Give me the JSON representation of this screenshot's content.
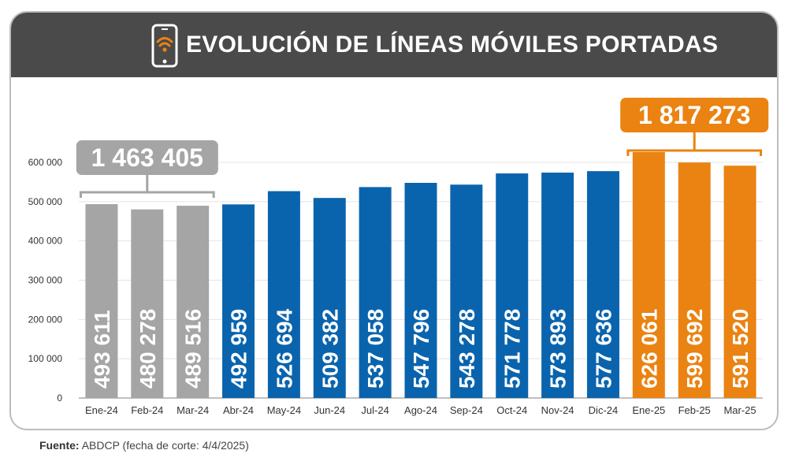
{
  "header": {
    "title": "EVOLUCIÓN DE LÍNEAS MÓVILES PORTADAS",
    "icon": "smartphone-wifi-icon"
  },
  "footer": {
    "source_label": "Fuente:",
    "source_text": "ABDCP (fecha de corte: 4/4/2025)"
  },
  "colors": {
    "header_bg": "#4a4a4a",
    "gray_bar": "#a5a5a5",
    "blue_bar": "#0a64ad",
    "orange_bar": "#ea8312",
    "accent_orange": "#ea8312"
  },
  "chart_data": {
    "type": "bar",
    "title": "EVOLUCIÓN DE LÍNEAS MÓVILES PORTADAS",
    "xlabel": "",
    "ylabel": "",
    "ylim": [
      0,
      600000
    ],
    "yticks": [
      0,
      100000,
      200000,
      300000,
      400000,
      500000,
      600000
    ],
    "ytick_labels": [
      "0",
      "100 000",
      "200 000",
      "300 000",
      "400 000",
      "500 000",
      "600 000"
    ],
    "grid": true,
    "categories": [
      "Ene-24",
      "Feb-24",
      "Mar-24",
      "Abr-24",
      "May-24",
      "Jun-24",
      "Jul-24",
      "Ago-24",
      "Sep-24",
      "Oct-24",
      "Nov-24",
      "Dic-24",
      "Ene-25",
      "Feb-25",
      "Mar-25"
    ],
    "values": [
      493611,
      480278,
      489516,
      492959,
      526694,
      509382,
      537058,
      547796,
      543278,
      571778,
      573893,
      577636,
      626061,
      599692,
      591520
    ],
    "value_labels": [
      "493 611",
      "480 278",
      "489 516",
      "492 959",
      "526 694",
      "509 382",
      "537 058",
      "547 796",
      "543 278",
      "571 778",
      "573 893",
      "577 636",
      "626 061",
      "599 692",
      "591 520"
    ],
    "bar_colors": [
      "gray",
      "gray",
      "gray",
      "blue",
      "blue",
      "blue",
      "blue",
      "blue",
      "blue",
      "blue",
      "blue",
      "blue",
      "orange",
      "orange",
      "orange"
    ],
    "annotations": [
      {
        "label": "1 463 405",
        "from_index": 0,
        "to_index": 2,
        "color": "gray"
      },
      {
        "label": "1 817 273",
        "from_index": 12,
        "to_index": 14,
        "color": "orange"
      }
    ]
  }
}
